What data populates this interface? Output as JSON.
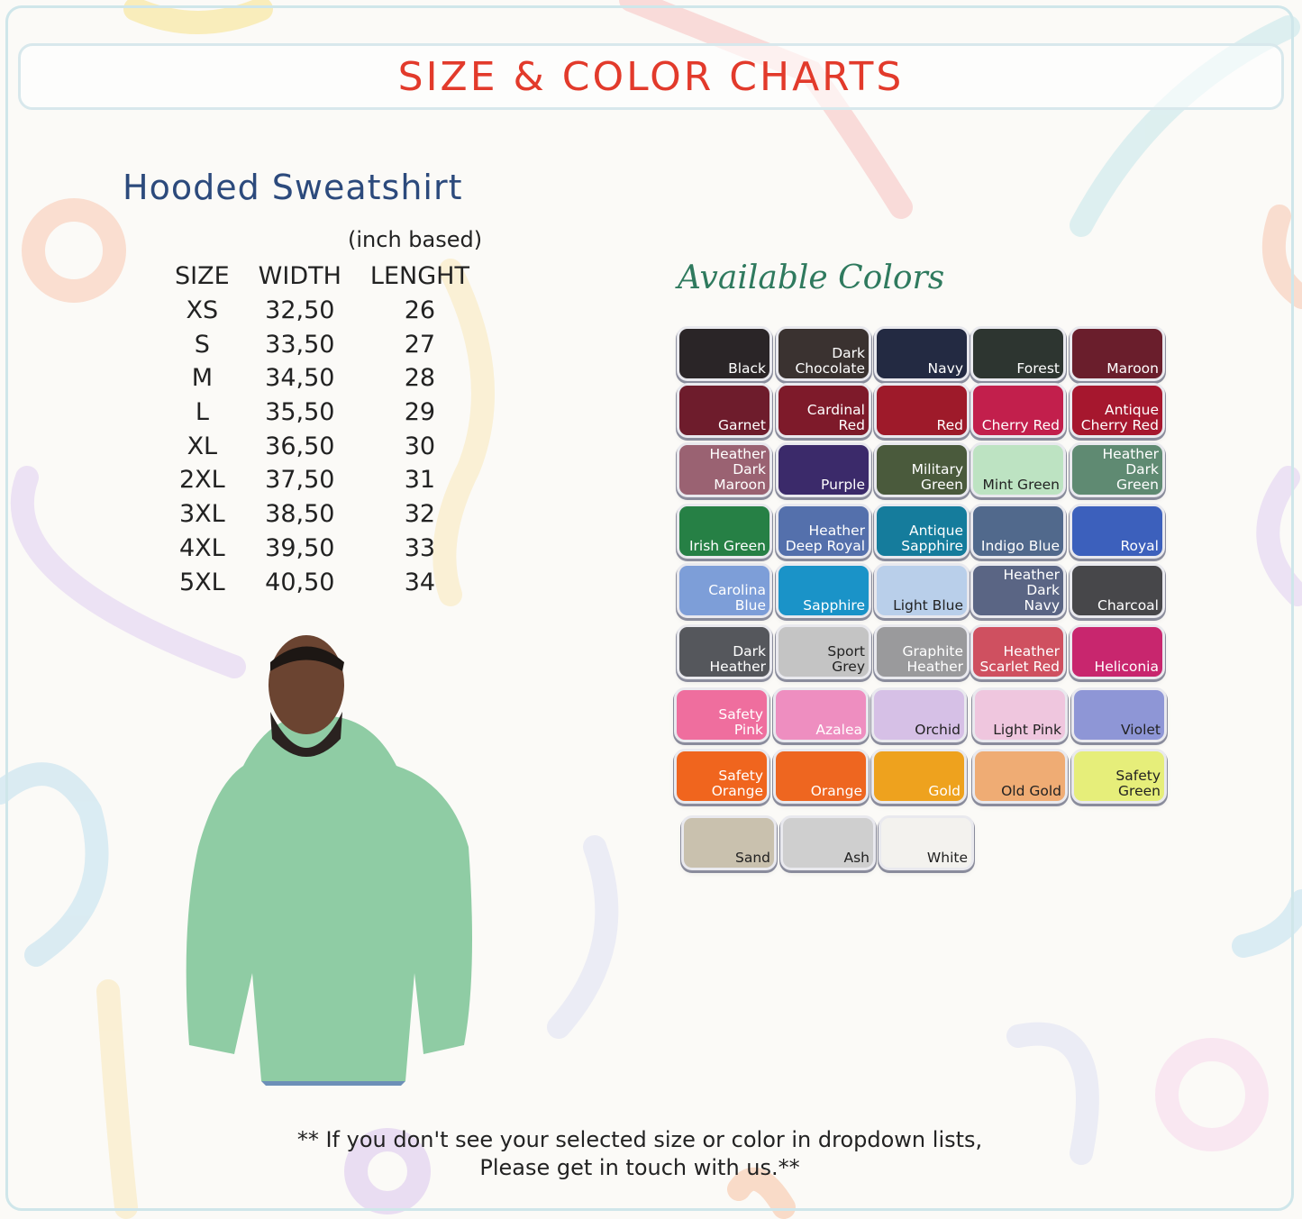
{
  "header": {
    "title": "SIZE & COLOR CHARTS"
  },
  "product": {
    "name": "Hooded Sweatshirt",
    "unit_note": "(inch based)"
  },
  "size_chart": {
    "columns": [
      "SIZE",
      "WIDTH",
      "LENGHT"
    ],
    "rows": [
      [
        "XS",
        "32,50",
        "26"
      ],
      [
        "S",
        "33,50",
        "27"
      ],
      [
        "M",
        "34,50",
        "28"
      ],
      [
        "L",
        "35,50",
        "29"
      ],
      [
        "XL",
        "36,50",
        "30"
      ],
      [
        "2XL",
        "37,50",
        "31"
      ],
      [
        "3XL",
        "38,50",
        "32"
      ],
      [
        "4XL",
        "39,50",
        "33"
      ],
      [
        "5XL",
        "40,50",
        "34"
      ]
    ]
  },
  "colors": {
    "heading": "Available Colors",
    "swatches": [
      {
        "label": "Black",
        "color": "#2a2527"
      },
      {
        "label": "Dark\nChocolate",
        "color": "#3a3230"
      },
      {
        "label": "Navy",
        "color": "#232a42"
      },
      {
        "label": "Forest",
        "color": "#2d3530"
      },
      {
        "label": "Maroon",
        "color": "#6a1e2c"
      },
      {
        "label": "Garnet",
        "color": "#6e1c2c"
      },
      {
        "label": "Cardinal Red",
        "color": "#7e1a2a"
      },
      {
        "label": "Red",
        "color": "#9e1a2a"
      },
      {
        "label": "Cherry Red",
        "color": "#c21f4c"
      },
      {
        "label": "Antique\nCherry Red",
        "color": "#a6172e"
      },
      {
        "label": "Heather Dark\nMaroon",
        "color": "#9a6272"
      },
      {
        "label": "Purple",
        "color": "#3b2a6a"
      },
      {
        "label": "Military Green",
        "color": "#4a5a3c"
      },
      {
        "label": "Mint Green",
        "color": "#bde3c2",
        "dark": true
      },
      {
        "label": "Heather Dark\nGreen",
        "color": "#5f8a72"
      },
      {
        "label": "Irish Green",
        "color": "#268045"
      },
      {
        "label": "Heather\nDeep Royal",
        "color": "#5470ac"
      },
      {
        "label": "Antique\nSapphire",
        "color": "#157c9c"
      },
      {
        "label": "Indigo Blue",
        "color": "#51698c"
      },
      {
        "label": "Royal",
        "color": "#3c60bc"
      },
      {
        "label": "Carolina\nBlue",
        "color": "#7d9ed8"
      },
      {
        "label": "Sapphire",
        "color": "#1a93c8"
      },
      {
        "label": "Light Blue",
        "color": "#b9cfea",
        "dark": true
      },
      {
        "label": "Heather Dark\nNavy",
        "color": "#5a6584"
      },
      {
        "label": "Charcoal",
        "color": "#47474a"
      },
      {
        "label": "Dark\nHeather",
        "color": "#55575c"
      },
      {
        "label": "Sport\nGrey",
        "color": "#c4c4c4",
        "dark": true
      },
      {
        "label": "Graphite\nHeather",
        "color": "#9a9a9c"
      },
      {
        "label": "Heather\nScarlet Red",
        "color": "#cf5060"
      },
      {
        "label": "Heliconia",
        "color": "#c8266e"
      },
      {
        "label": "Safety\nPink",
        "color": "#ef6e9e"
      },
      {
        "label": "Azalea",
        "color": "#ee8ec0"
      },
      {
        "label": "Orchid",
        "color": "#d6c0e6",
        "dark": true
      },
      {
        "label": "Light Pink",
        "color": "#efc6de",
        "dark": true
      },
      {
        "label": "Violet",
        "color": "#8e96d6",
        "dark": true
      },
      {
        "label": "Safety\nOrange",
        "color": "#f0651e"
      },
      {
        "label": "Orange",
        "color": "#ee6620"
      },
      {
        "label": "Gold",
        "color": "#eea21e"
      },
      {
        "label": "Old Gold",
        "color": "#efac74",
        "dark": true
      },
      {
        "label": "Safety\nGreen",
        "color": "#e6ee7a",
        "dark": true
      },
      {
        "label": "Sand",
        "color": "#c9c1ae",
        "dark": true
      },
      {
        "label": "Ash",
        "color": "#cfcfcf",
        "dark": true
      },
      {
        "label": "White",
        "color": "#f3f2ee",
        "dark": true
      }
    ]
  },
  "footer": {
    "line1": "** If you don't see your selected size or color in dropdown lists,",
    "line2": "Please get in touch with us.**"
  },
  "accent": {
    "title": "#e23a2b",
    "product": "#2c4a7c",
    "hoodie": "#8fcca4"
  }
}
